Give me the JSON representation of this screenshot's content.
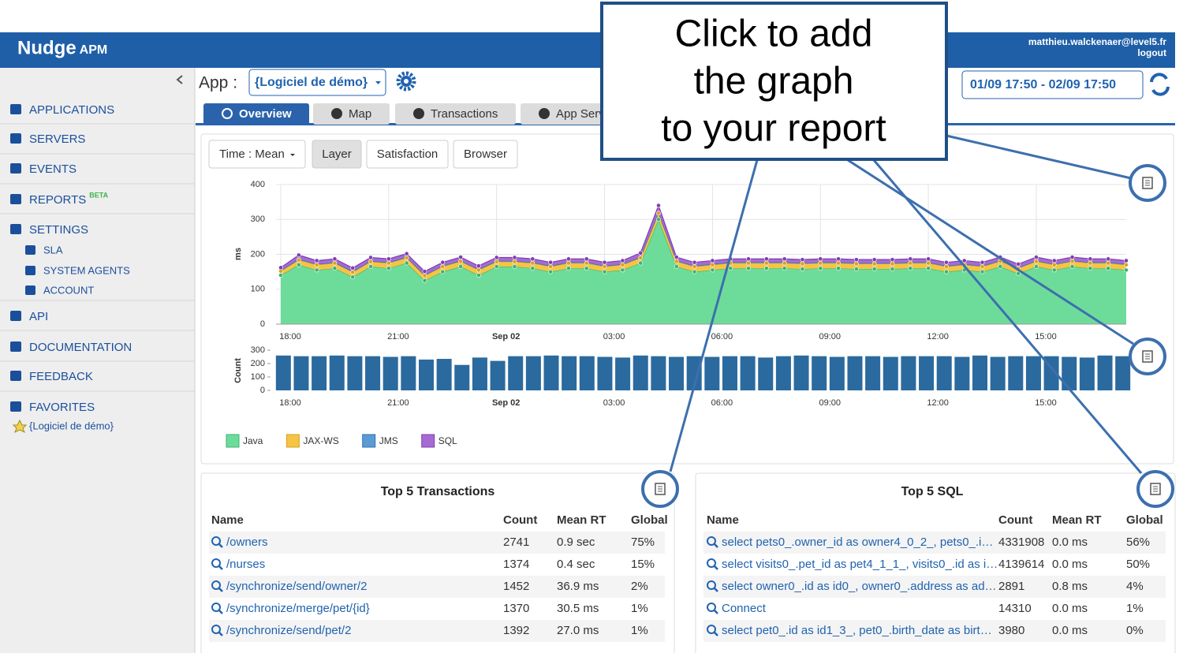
{
  "header": {
    "brand": "Nudge",
    "brand_suffix": "APM",
    "user": "matthieu.walckenaer@level5.fr",
    "logout": "logout"
  },
  "sidebar": {
    "items": [
      "APPLICATIONS",
      "SERVERS",
      "EVENTS",
      "REPORTS",
      "SETTINGS",
      "SLA",
      "SYSTEM AGENTS",
      "ACCOUNT",
      "API",
      "DOCUMENTATION",
      "FEEDBACK",
      "FAVORITES",
      "{Logiciel de démo}"
    ],
    "beta": "BETA"
  },
  "toolbar": {
    "app_label": "App :",
    "app_select": "{Logiciel de démo}",
    "date_range": "01/09 17:50 - 02/09 17:50"
  },
  "tabs": [
    "Overview",
    "Map",
    "Transactions",
    "App Servers"
  ],
  "chart_buttons": [
    "Time : Mean",
    "Layer",
    "Satisfaction",
    "Browser"
  ],
  "chart_data": [
    {
      "type": "area",
      "stacked": true,
      "ylabel": "ms",
      "categories": [
        "18:00",
        null,
        null,
        null,
        null,
        null,
        "21:00",
        null,
        null,
        null,
        null,
        null,
        "Sep 02",
        null,
        null,
        null,
        null,
        null,
        "03:00",
        null,
        null,
        null,
        null,
        null,
        "06:00",
        null,
        null,
        null,
        null,
        null,
        "09:00",
        null,
        null,
        null,
        null,
        null,
        "12:00",
        null,
        null,
        null,
        null,
        null,
        "15:00",
        null,
        null,
        null,
        null,
        null
      ],
      "ylim": [
        0,
        400
      ],
      "yticks": [
        0,
        100,
        200,
        300,
        400
      ],
      "grid": true,
      "series": [
        {
          "name": "Java",
          "color": "#6ddc9a",
          "values": [
            140,
            170,
            155,
            160,
            135,
            165,
            160,
            175,
            125,
            150,
            165,
            140,
            165,
            165,
            160,
            150,
            160,
            160,
            150,
            155,
            175,
            300,
            165,
            150,
            155,
            160,
            160,
            160,
            160,
            158,
            160,
            160,
            158,
            158,
            158,
            160,
            160,
            150,
            155,
            150,
            165,
            145,
            165,
            155,
            165,
            160,
            160,
            155
          ]
        },
        {
          "name": "JAX-WS",
          "color": "#f5c445",
          "values": [
            12,
            14,
            15,
            15,
            14,
            14,
            15,
            15,
            14,
            15,
            15,
            15,
            14,
            14,
            15,
            15,
            15,
            15,
            15,
            15,
            15,
            18,
            15,
            15,
            15,
            15,
            15,
            15,
            15,
            15,
            15,
            15,
            15,
            15,
            15,
            15,
            15,
            15,
            15,
            15,
            15,
            15,
            15,
            15,
            15,
            15,
            15,
            15
          ]
        },
        {
          "name": "JMS",
          "color": "#5b9bd5",
          "values": [
            2,
            2,
            2,
            2,
            2,
            2,
            2,
            2,
            2,
            2,
            2,
            2,
            2,
            2,
            2,
            2,
            2,
            2,
            2,
            2,
            2,
            2,
            2,
            2,
            2,
            2,
            2,
            2,
            2,
            2,
            2,
            2,
            2,
            2,
            2,
            2,
            2,
            2,
            2,
            2,
            2,
            2,
            2,
            2,
            2,
            2,
            2,
            2
          ]
        },
        {
          "name": "SQL",
          "color": "#a66bd3",
          "values": [
            8,
            12,
            10,
            10,
            10,
            10,
            10,
            10,
            10,
            10,
            10,
            10,
            10,
            10,
            10,
            10,
            10,
            10,
            10,
            10,
            12,
            20,
            10,
            10,
            10,
            10,
            10,
            10,
            10,
            10,
            10,
            10,
            10,
            10,
            10,
            10,
            10,
            10,
            10,
            10,
            10,
            10,
            10,
            10,
            10,
            10,
            10,
            10
          ]
        }
      ]
    },
    {
      "type": "bar",
      "ylabel": "Count",
      "color": "#2b6a9e",
      "categories": [
        "18:00",
        null,
        null,
        null,
        null,
        null,
        "21:00",
        null,
        null,
        null,
        null,
        null,
        "Sep 02",
        null,
        null,
        null,
        null,
        null,
        "03:00",
        null,
        null,
        null,
        null,
        null,
        "06:00",
        null,
        null,
        null,
        null,
        null,
        "09:00",
        null,
        null,
        null,
        null,
        null,
        "12:00",
        null,
        null,
        null,
        null,
        null,
        "15:00",
        null,
        null,
        null,
        null,
        null
      ],
      "ylim": [
        0,
        300
      ],
      "yticks": [
        0,
        100,
        200,
        300
      ],
      "values": [
        260,
        255,
        255,
        260,
        255,
        255,
        250,
        255,
        230,
        235,
        190,
        245,
        220,
        255,
        255,
        260,
        255,
        255,
        250,
        245,
        260,
        255,
        250,
        255,
        250,
        255,
        255,
        245,
        255,
        260,
        255,
        250,
        255,
        255,
        250,
        255,
        255,
        255,
        250,
        260,
        250,
        255,
        255,
        255,
        250,
        245,
        260,
        255
      ]
    }
  ],
  "tables": [
    {
      "title": "Top 5 Transactions",
      "columns": [
        "Name",
        "Count",
        "Mean RT",
        "Global"
      ],
      "rows": [
        [
          "/owners",
          2741,
          "0.9 sec",
          "75%"
        ],
        [
          "/nurses",
          1374,
          "0.4 sec",
          "15%"
        ],
        [
          "/synchronize/send/owner/2",
          1452,
          "36.9 ms",
          "2%"
        ],
        [
          "/synchronize/merge/pet/{id}",
          1370,
          "30.5 ms",
          "1%"
        ],
        [
          "/synchronize/send/pet/2",
          1392,
          "27.0 ms",
          "1%"
        ]
      ]
    },
    {
      "title": "Top 5 SQL",
      "columns": [
        "Name",
        "Count",
        "Mean RT",
        "Global"
      ],
      "rows": [
        [
          "select pets0_.owner_id as owner4_0_2_, pets0_.i…",
          4331908,
          "0.0 ms",
          "56%"
        ],
        [
          "select visits0_.pet_id as pet4_1_1_, visits0_.id as i…",
          4139614,
          "0.0 ms",
          "50%"
        ],
        [
          "select owner0_.id as id0_, owner0_.address as ad…",
          2891,
          "0.8 ms",
          "4%"
        ],
        [
          "Connect",
          14310,
          "0.0 ms",
          "1%"
        ],
        [
          "select pet0_.id as id1_3_, pet0_.birth_date as birt…",
          3980,
          "0.0 ms",
          "0%"
        ]
      ]
    }
  ],
  "callout": {
    "lines": [
      "Click to add",
      "the graph",
      "to your report"
    ]
  }
}
